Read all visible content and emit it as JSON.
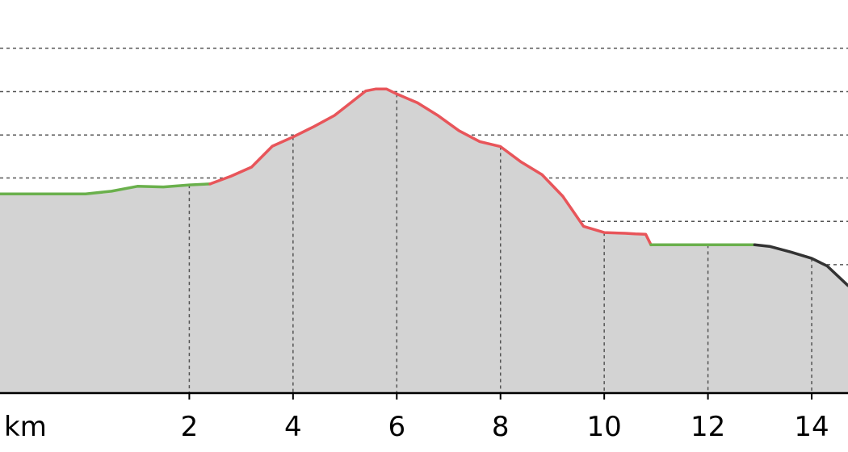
{
  "chart_data": {
    "type": "area",
    "title": "",
    "xlabel": "km",
    "ylabel": "",
    "xlim": [
      -1.65,
      14.7
    ],
    "ylim": [
      0,
      100
    ],
    "x_ticks": [
      2,
      4,
      6,
      8,
      10,
      12,
      14
    ],
    "x_tick_labels": [
      "2",
      "4",
      "6",
      "8",
      "10",
      "12",
      "14"
    ],
    "y_gridlines": [
      12.7,
      25.8,
      38.8,
      51.9,
      65.0,
      78.0,
      91.1,
      104.2
    ],
    "grid": true,
    "fill_color": "#d3d3d3",
    "segment_colors": {
      "green": "#6ab04c",
      "red": "#e8555a",
      "dark": "#333333"
    },
    "series": [
      {
        "color": "green",
        "x": [
          -1.65,
          0.0,
          0.5,
          1.0,
          1.5,
          2.0,
          2.4
        ],
        "y": [
          60.2,
          60.2,
          61.0,
          62.5,
          62.3,
          62.9,
          63.2
        ]
      },
      {
        "color": "red",
        "x": [
          2.4,
          2.8,
          3.2,
          3.6,
          4.0,
          4.4,
          4.8,
          5.2,
          5.4,
          5.6,
          5.8,
          6.0,
          6.4,
          6.8,
          7.2,
          7.6,
          8.0,
          8.4,
          8.8,
          9.2,
          9.6,
          10.0,
          10.4,
          10.6,
          10.8,
          10.9
        ],
        "y": [
          63.2,
          65.5,
          68.3,
          74.6,
          77.4,
          80.5,
          83.9,
          88.8,
          91.3,
          91.9,
          91.9,
          90.4,
          87.7,
          83.8,
          79.3,
          76.0,
          74.5,
          69.8,
          66.0,
          59.5,
          50.4,
          48.5,
          48.3,
          48.1,
          48.0,
          44.8
        ]
      },
      {
        "color": "green",
        "x": [
          10.9,
          11.5,
          12.0,
          12.5,
          12.9
        ],
        "y": [
          44.8,
          44.8,
          44.8,
          44.8,
          44.8
        ]
      },
      {
        "color": "dark",
        "x": [
          12.9,
          13.2,
          13.6,
          14.0,
          14.3,
          14.7
        ],
        "y": [
          44.8,
          44.3,
          42.6,
          40.7,
          38.4,
          32.5
        ]
      }
    ]
  }
}
